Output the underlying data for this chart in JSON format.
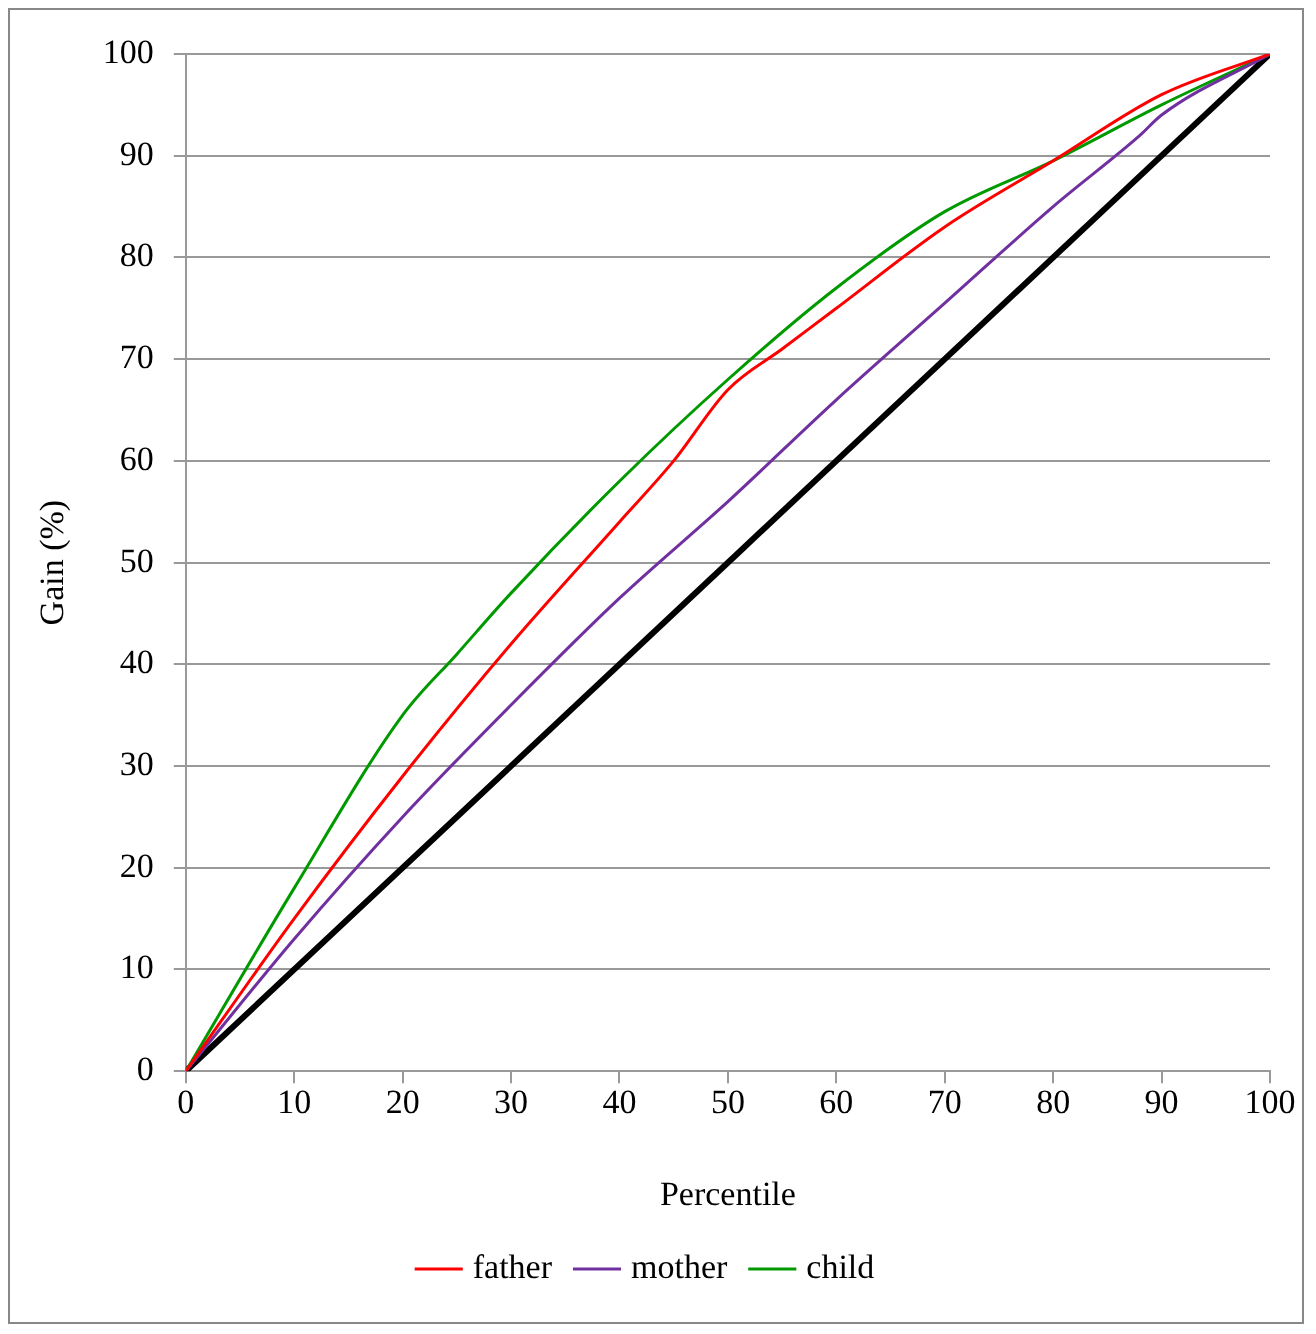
{
  "chart_data": {
    "type": "line",
    "xlabel": "Percentile",
    "ylabel": "Gain (%)",
    "xlim": [
      0,
      100
    ],
    "ylim": [
      0,
      100
    ],
    "xticks": [
      0,
      10,
      20,
      30,
      40,
      50,
      60,
      70,
      80,
      90,
      100
    ],
    "yticks": [
      0,
      10,
      20,
      30,
      40,
      50,
      60,
      70,
      80,
      90,
      100
    ],
    "grid": "y",
    "legend": "bottom",
    "marker": "none",
    "line_style": "solid",
    "series": [
      {
        "name": "father",
        "color": "#ff0000",
        "x": [
          0,
          10,
          20,
          30,
          40,
          45,
          50,
          55,
          60,
          70,
          80,
          90,
          100
        ],
        "values": [
          0,
          15,
          29,
          42,
          54,
          60,
          67,
          71,
          75,
          83,
          89.5,
          96,
          100
        ]
      },
      {
        "name": "mother",
        "color": "#7030a0",
        "x": [
          0,
          10,
          20,
          30,
          40,
          50,
          60,
          70,
          80,
          88,
          90,
          100
        ],
        "values": [
          0,
          13,
          25,
          36,
          46.5,
          56,
          66,
          75.5,
          85,
          92,
          94,
          100
        ]
      },
      {
        "name": "child",
        "color": "#009900",
        "x": [
          0,
          10,
          20,
          25,
          30,
          40,
          50,
          60,
          70,
          80,
          90,
          100
        ],
        "values": [
          0,
          18,
          35,
          41,
          47,
          58,
          68,
          77,
          84.5,
          89.5,
          95,
          100
        ]
      },
      {
        "color": "#000000",
        "x": [
          0,
          100
        ],
        "values": [
          0,
          100
        ]
      }
    ]
  }
}
